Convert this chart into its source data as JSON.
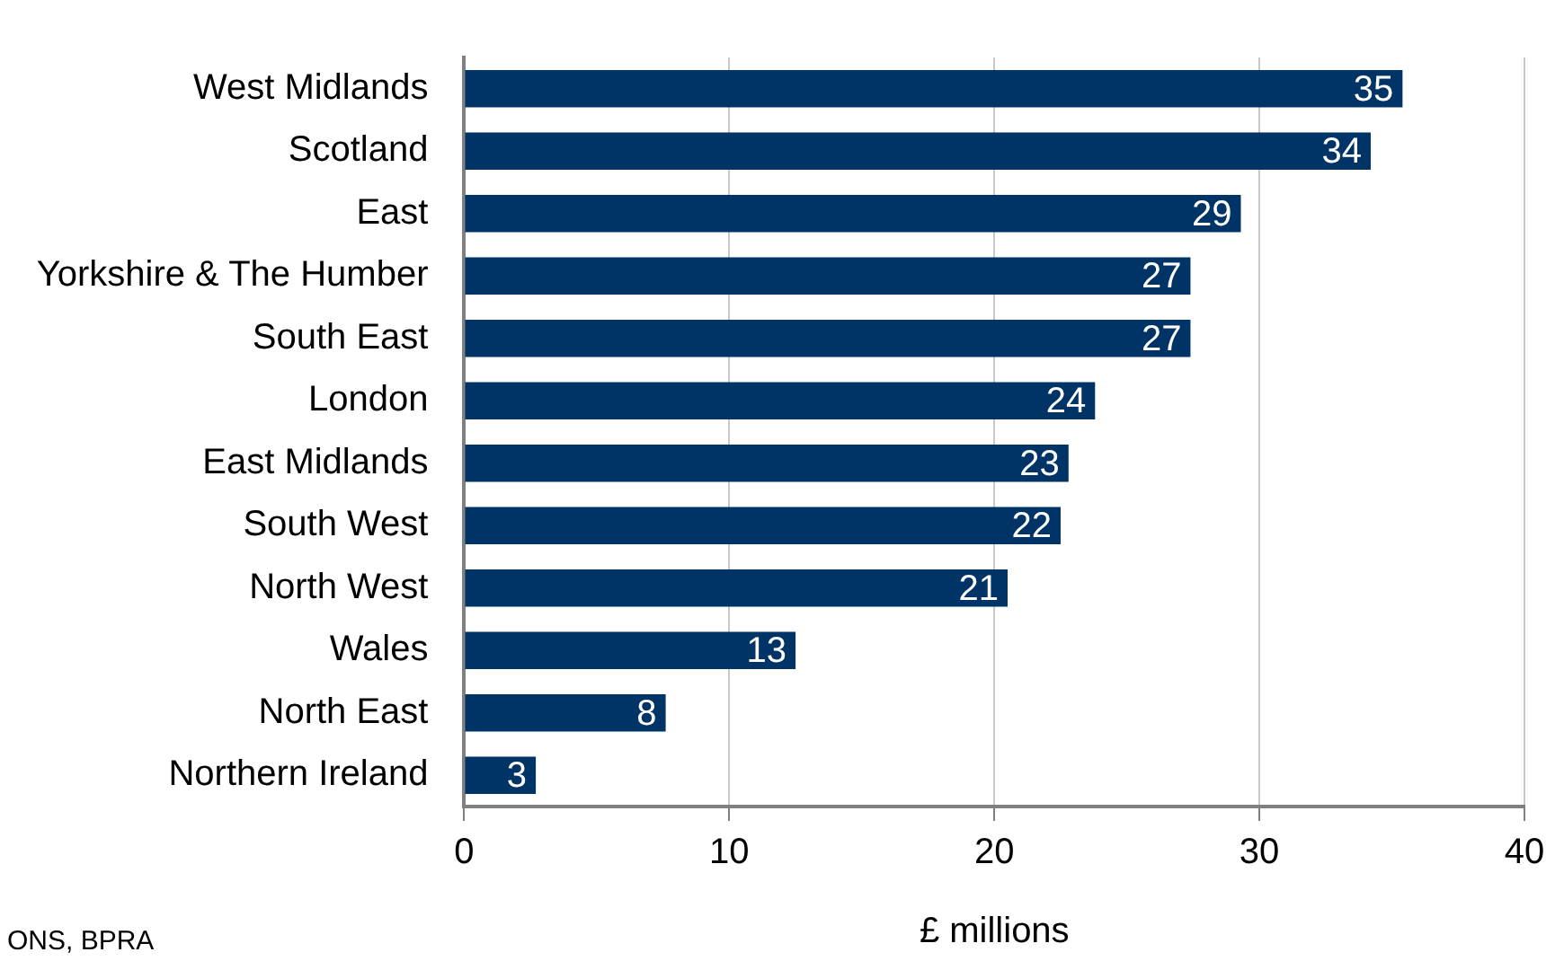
{
  "chart_data": {
    "type": "bar",
    "orientation": "horizontal",
    "xlabel": "£ millions",
    "categories": [
      "West Midlands",
      "Scotland",
      "East",
      "Yorkshire & The Humber",
      "South East",
      "London",
      "East Midlands",
      "South West",
      "North West",
      "Wales",
      "North East",
      "Northern Ireland"
    ],
    "values": [
      35.4,
      34.2,
      29.3,
      27.4,
      27.4,
      23.8,
      22.8,
      22.5,
      20.5,
      12.5,
      7.6,
      2.7
    ],
    "value_labels": [
      "35",
      "34",
      "29",
      "27",
      "27",
      "24",
      "23",
      "22",
      "21",
      "13",
      "8",
      "3"
    ],
    "color": "#003366",
    "xlim": [
      0,
      40
    ],
    "xticks": [
      0,
      10,
      20,
      30,
      40
    ],
    "grid": "x",
    "legend": false,
    "annotations": [
      "ONS, BPRA"
    ]
  }
}
